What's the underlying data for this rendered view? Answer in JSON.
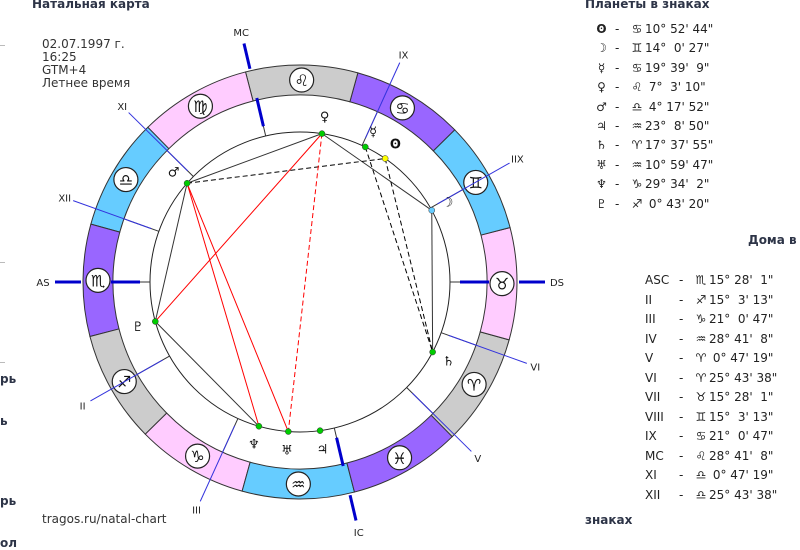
{
  "title": "Натальная карта",
  "info": {
    "date": "02.07.1997 г.",
    "time": "16:25",
    "timezone": "GTM+4",
    "dst": "Летнее время"
  },
  "footer": "tragos.ru/natal-chart",
  "left_fragments": [
    "рь",
    "ь",
    "рь",
    "ол"
  ],
  "planets_title": "Планеты в знаках",
  "houses_title_1": "Дома в",
  "houses_title_2": "знаках",
  "signs": [
    {
      "glyph": "♈",
      "color": "#cccccc"
    },
    {
      "glyph": "♉",
      "color": "#ffccff"
    },
    {
      "glyph": "♊",
      "color": "#66ccff"
    },
    {
      "glyph": "♋",
      "color": "#9966ff"
    },
    {
      "glyph": "♌",
      "color": "#cccccc"
    },
    {
      "glyph": "♍",
      "color": "#ffccff"
    },
    {
      "glyph": "♎",
      "color": "#66ccff"
    },
    {
      "glyph": "♏",
      "color": "#9966ff"
    },
    {
      "glyph": "♐",
      "color": "#cccccc"
    },
    {
      "glyph": "♑",
      "color": "#ffccff"
    },
    {
      "glyph": "♒",
      "color": "#66ccff"
    },
    {
      "glyph": "♓",
      "color": "#9966ff"
    }
  ],
  "planets": [
    {
      "icon": "sun-icon",
      "glyph": "ʘ",
      "sign": 3,
      "deg": "10° 52' 44\"",
      "dot": "#ffff00"
    },
    {
      "icon": "moon-icon",
      "glyph": "☽",
      "sign": 2,
      "deg": "14°  0' 27\"",
      "dot": "#66ccff"
    },
    {
      "icon": "mercury-icon",
      "glyph": "☿",
      "sign": 3,
      "deg": "19° 39'  9\"",
      "dot": "#00cc00"
    },
    {
      "icon": "venus-icon",
      "glyph": "♀",
      "sign": 4,
      "deg": " 7°  3' 10\"",
      "dot": "#00cc00"
    },
    {
      "icon": "mars-icon",
      "glyph": "♂",
      "sign": 6,
      "deg": " 4° 17' 52\"",
      "dot": "#00cc00"
    },
    {
      "icon": "jupiter-icon",
      "glyph": "♃",
      "sign": 10,
      "deg": "23°  8' 50\"",
      "dot": "#00cc00"
    },
    {
      "icon": "saturn-icon",
      "glyph": "♄",
      "sign": 0,
      "deg": "17° 37' 55\"",
      "dot": "#00cc00"
    },
    {
      "icon": "uranus-icon",
      "glyph": "♅",
      "sign": 10,
      "deg": "10° 59' 47\"",
      "dot": "#00cc00"
    },
    {
      "icon": "neptune-icon",
      "glyph": "♆",
      "sign": 9,
      "deg": "29° 34'  2\"",
      "dot": "#00cc00"
    },
    {
      "icon": "pluto-icon",
      "glyph": "♇",
      "sign": 8,
      "deg": " 0° 43' 20\"",
      "dot": "#00cc00"
    }
  ],
  "houses": [
    {
      "name": "ASC",
      "chart_label": "AS",
      "sign": 7,
      "deg": "15° 28'  1\""
    },
    {
      "name": "II",
      "chart_label": "II",
      "sign": 8,
      "deg": "15°  3' 13\""
    },
    {
      "name": "III",
      "chart_label": "III",
      "sign": 9,
      "deg": "21°  0' 47\""
    },
    {
      "name": "IV",
      "chart_label": "IC",
      "sign": 10,
      "deg": "28° 41'  8\""
    },
    {
      "name": "V",
      "chart_label": "V",
      "sign": 0,
      "deg": " 0° 47' 19\""
    },
    {
      "name": "VI",
      "chart_label": "VI",
      "sign": 0,
      "deg": "25° 43' 38\""
    },
    {
      "name": "VII",
      "chart_label": "DS",
      "sign": 1,
      "deg": "15° 28'  1\""
    },
    {
      "name": "VIII",
      "chart_label": "IIX",
      "sign": 2,
      "deg": "15°  3' 13\""
    },
    {
      "name": "IX",
      "chart_label": "IX",
      "sign": 3,
      "deg": "21°  0' 47\""
    },
    {
      "name": "MC",
      "chart_label": "MC",
      "sign": 4,
      "deg": "28° 41'  8\""
    },
    {
      "name": "XI",
      "chart_label": "XI",
      "sign": 6,
      "deg": " 0° 47' 19\""
    },
    {
      "name": "XII",
      "chart_label": "XII",
      "sign": 6,
      "deg": "25° 43' 38\""
    }
  ],
  "aspects": [
    {
      "a": 3,
      "b": 4,
      "color": "#333333",
      "dashed": false
    },
    {
      "a": 3,
      "b": 1,
      "color": "#333333",
      "dashed": false
    },
    {
      "a": 4,
      "b": 9,
      "color": "#333333",
      "dashed": false
    },
    {
      "a": 9,
      "b": 8,
      "color": "#333333",
      "dashed": false
    },
    {
      "a": 1,
      "b": 6,
      "color": "#333333",
      "dashed": false
    },
    {
      "a": 4,
      "b": 0,
      "color": "#000000",
      "dashed": true
    },
    {
      "a": 2,
      "b": 6,
      "color": "#000000",
      "dashed": true
    },
    {
      "a": 0,
      "b": 6,
      "color": "#000000",
      "dashed": true
    },
    {
      "a": 4,
      "b": 8,
      "color": "#ff0000",
      "dashed": false
    },
    {
      "a": 4,
      "b": 7,
      "color": "#ff0000",
      "dashed": false
    },
    {
      "a": 9,
      "b": 3,
      "color": "#ff0000",
      "dashed": false
    },
    {
      "a": 3,
      "b": 7,
      "color": "#ff0000",
      "dashed": true
    }
  ]
}
